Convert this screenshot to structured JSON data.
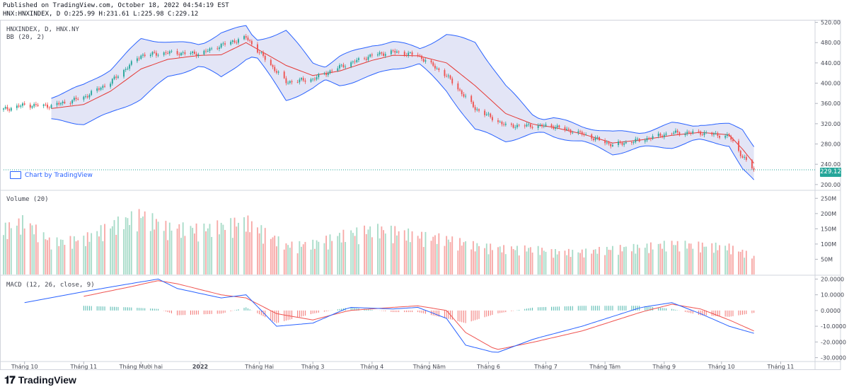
{
  "header": {
    "published": "Published on TradingView.com, October 18, 2022 04:54:19 EST",
    "symbol_line": "HNX:HNXINDEX, D O:225.99 H:231.61 L:225.98 C:229.12"
  },
  "panes": {
    "price_title": "HNXINDEX, D, HNX.NY",
    "bb_label": "BB (20, 2)",
    "volume_label": "Volume (20)",
    "macd_label": "MACD (12, 26, close, 9)",
    "last_price": "229.12",
    "chart_by": "Chart by TradingView"
  },
  "footer": {
    "brand": "TradingView"
  },
  "colors": {
    "up": "#26a69a",
    "down": "#ef5350",
    "vol_up": "#a9dcc9",
    "vol_down": "#f7a9a7",
    "bb_band": "#2962ff",
    "bb_mid": "#e53935",
    "bb_fill": "#dadcf3",
    "macd": "#2962ff",
    "signal": "#ef5350"
  },
  "chart_data": [
    {
      "type": "line",
      "title": "HNXINDEX, D, HNX.NY",
      "x": [
        "2021-09-20",
        "2021-10-01",
        "2021-10-15",
        "2021-11-01",
        "2021-11-15",
        "2021-12-01",
        "2021-12-15",
        "2022-01-01",
        "2022-01-12",
        "2022-01-25",
        "2022-02-15",
        "2022-03-01",
        "2022-03-15",
        "2022-04-01",
        "2022-04-12",
        "2022-04-25",
        "2022-05-10",
        "2022-05-25",
        "2022-06-10",
        "2022-06-25",
        "2022-07-05",
        "2022-07-20",
        "2022-08-05",
        "2022-08-20",
        "2022-09-05",
        "2022-09-20",
        "2022-10-05",
        "2022-10-12",
        "2022-10-18"
      ],
      "series": [
        {
          "name": "HNXINDEX",
          "values": [
            348,
            357,
            355,
            372,
            402,
            455,
            460,
            458,
            475,
            490,
            402,
            408,
            432,
            455,
            462,
            455,
            415,
            350,
            316,
            316,
            315,
            300,
            278,
            288,
            302,
            302,
            295,
            255,
            229.12
          ]
        },
        {
          "name": "BB (20, 2)",
          "values": [
            null,
            null,
            350,
            358,
            384,
            428,
            447,
            455,
            456,
            480,
            435,
            415,
            424,
            445,
            455,
            454,
            440,
            395,
            340,
            318,
            313,
            300,
            282,
            288,
            297,
            303,
            298,
            270,
            242
          ]
        }
      ],
      "ylim": [
        190,
        525
      ],
      "yticks": [
        200,
        240,
        280,
        320,
        360,
        400,
        440,
        480,
        520
      ],
      "last_value": 229.12
    },
    {
      "type": "bar",
      "title": "Volume (20)",
      "x": [
        "2021-09-20",
        "2021-10-01",
        "2021-10-15",
        "2021-11-01",
        "2021-11-15",
        "2021-12-01",
        "2021-12-15",
        "2022-01-01",
        "2022-01-12",
        "2022-01-25",
        "2022-02-15",
        "2022-03-01",
        "2022-03-15",
        "2022-04-01",
        "2022-04-12",
        "2022-04-25",
        "2022-05-10",
        "2022-05-25",
        "2022-06-10",
        "2022-06-25",
        "2022-07-05",
        "2022-07-20",
        "2022-08-05",
        "2022-08-20",
        "2022-09-05",
        "2022-09-20",
        "2022-10-05",
        "2022-10-12",
        "2022-10-18"
      ],
      "values": [
        140,
        165,
        100,
        110,
        150,
        185,
        145,
        140,
        150,
        165,
        90,
        95,
        120,
        140,
        135,
        120,
        110,
        90,
        80,
        80,
        70,
        70,
        80,
        85,
        95,
        90,
        85,
        70,
        55
      ],
      "yunit": "M",
      "yticks": [
        50,
        100,
        150,
        200,
        250
      ]
    },
    {
      "type": "line",
      "title": "MACD (12, 26, close, 9)",
      "x": [
        "2021-10-01",
        "2021-11-01",
        "2021-11-25",
        "2021-12-10",
        "2021-12-20",
        "2022-01-12",
        "2022-01-25",
        "2022-02-10",
        "2022-03-01",
        "2022-03-20",
        "2022-04-12",
        "2022-04-25",
        "2022-05-10",
        "2022-05-20",
        "2022-06-05",
        "2022-06-25",
        "2022-07-20",
        "2022-08-20",
        "2022-09-05",
        "2022-09-20",
        "2022-10-05",
        "2022-10-18"
      ],
      "series": [
        {
          "name": "MACD",
          "values": [
            5,
            12,
            17,
            20,
            14,
            8,
            10,
            -10,
            -8,
            2,
            1,
            2,
            -5,
            -22,
            -27,
            -18,
            -10,
            2,
            5,
            -2,
            -10,
            -14.5
          ]
        },
        {
          "name": "Signal",
          "values": [
            null,
            9,
            15,
            19,
            17,
            10,
            8,
            -2,
            -6,
            0,
            2,
            3,
            0,
            -14,
            -25,
            -20,
            -13,
            -1,
            4,
            1,
            -6,
            -13
          ]
        }
      ],
      "ylim": [
        -32,
        22
      ],
      "yticks": [
        -30,
        -20,
        -10,
        0,
        10,
        20
      ],
      "ytick_labels": [
        "-30.0000",
        "-20.0000",
        "-10.0000",
        "0.0000",
        "10.0000",
        "20.0000"
      ]
    }
  ],
  "x_axis_labels": [
    {
      "date": "2021-10-01",
      "text": "Tháng 10"
    },
    {
      "date": "2021-11-01",
      "text": "Tháng 11"
    },
    {
      "date": "2021-12-01",
      "text": "Tháng Mười hai"
    },
    {
      "date": "2022-01-01",
      "text": "2022"
    },
    {
      "date": "2022-02-01",
      "text": "Tháng Hai"
    },
    {
      "date": "2022-03-01",
      "text": "Tháng 3"
    },
    {
      "date": "2022-04-01",
      "text": "Tháng 4"
    },
    {
      "date": "2022-05-01",
      "text": "Tháng Năm"
    },
    {
      "date": "2022-06-01",
      "text": "Tháng 6"
    },
    {
      "date": "2022-07-01",
      "text": "Tháng 7"
    },
    {
      "date": "2022-08-01",
      "text": "Tháng Tám"
    },
    {
      "date": "2022-09-01",
      "text": "Tháng 9"
    },
    {
      "date": "2022-10-01",
      "text": "Tháng 10"
    },
    {
      "date": "2022-11-01",
      "text": "Tháng 11"
    }
  ]
}
